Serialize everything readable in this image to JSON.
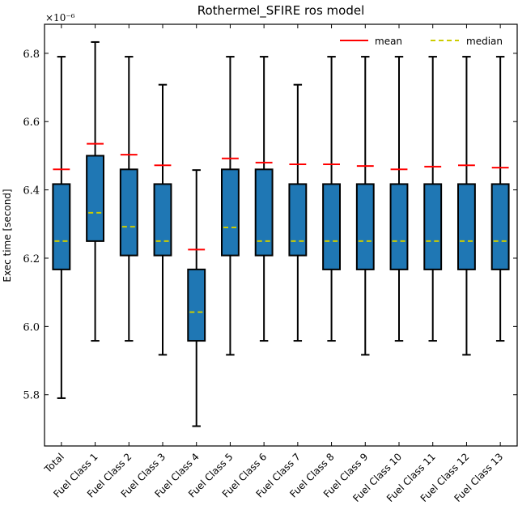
{
  "chart_data": {
    "type": "box",
    "title": "Rothermel_SFIRE ros model",
    "ylabel": "Exec time [second]",
    "xlabel": "",
    "y_offset_label": "×10⁻⁶",
    "ylim": [
      5.65,
      6.885
    ],
    "yticks": [
      5.8,
      6.0,
      6.2,
      6.4,
      6.6,
      6.8
    ],
    "ytick_labels": [
      "5.8",
      "6.0",
      "6.2",
      "6.4",
      "6.6",
      "6.8"
    ],
    "categories": [
      "Total",
      "Fuel Class 1",
      "Fuel Class 2",
      "Fuel Class 3",
      "Fuel Class 4",
      "Fuel Class 5",
      "Fuel Class 6",
      "Fuel Class 7",
      "Fuel Class 8",
      "Fuel Class 9",
      "Fuel Class 10",
      "Fuel Class 11",
      "Fuel Class 12",
      "Fuel Class 13"
    ],
    "boxes": [
      {
        "whislo": 5.79,
        "q1": 6.167,
        "med": 6.25,
        "q3": 6.417,
        "whishi": 6.79,
        "mean": 6.46
      },
      {
        "whislo": 5.958,
        "q1": 6.25,
        "med": 6.333,
        "q3": 6.5,
        "whishi": 6.833,
        "mean": 6.535
      },
      {
        "whislo": 5.958,
        "q1": 6.208,
        "med": 6.292,
        "q3": 6.46,
        "whishi": 6.79,
        "mean": 6.503
      },
      {
        "whislo": 5.917,
        "q1": 6.208,
        "med": 6.25,
        "q3": 6.417,
        "whishi": 6.708,
        "mean": 6.472
      },
      {
        "whislo": 5.708,
        "q1": 5.958,
        "med": 6.042,
        "q3": 6.167,
        "whishi": 6.458,
        "mean": 6.225
      },
      {
        "whislo": 5.917,
        "q1": 6.208,
        "med": 6.29,
        "q3": 6.46,
        "whishi": 6.79,
        "mean": 6.492
      },
      {
        "whislo": 5.958,
        "q1": 6.208,
        "med": 6.25,
        "q3": 6.46,
        "whishi": 6.79,
        "mean": 6.48
      },
      {
        "whislo": 5.958,
        "q1": 6.208,
        "med": 6.25,
        "q3": 6.417,
        "whishi": 6.708,
        "mean": 6.475
      },
      {
        "whislo": 5.958,
        "q1": 6.167,
        "med": 6.25,
        "q3": 6.417,
        "whishi": 6.79,
        "mean": 6.475
      },
      {
        "whislo": 5.917,
        "q1": 6.167,
        "med": 6.25,
        "q3": 6.417,
        "whishi": 6.79,
        "mean": 6.47
      },
      {
        "whislo": 5.958,
        "q1": 6.167,
        "med": 6.25,
        "q3": 6.417,
        "whishi": 6.79,
        "mean": 6.46
      },
      {
        "whislo": 5.958,
        "q1": 6.167,
        "med": 6.25,
        "q3": 6.417,
        "whishi": 6.79,
        "mean": 6.468
      },
      {
        "whislo": 5.917,
        "q1": 6.167,
        "med": 6.25,
        "q3": 6.417,
        "whishi": 6.79,
        "mean": 6.472
      },
      {
        "whislo": 5.958,
        "q1": 6.167,
        "med": 6.25,
        "q3": 6.417,
        "whishi": 6.79,
        "mean": 6.465
      }
    ],
    "legend": {
      "placement": "top-right",
      "items": [
        {
          "label": "mean",
          "color": "#ff0000",
          "style": "solid"
        },
        {
          "label": "median",
          "color": "#cccc00",
          "style": "dashed"
        }
      ]
    },
    "colors": {
      "box_fill": "#1f77b4",
      "box_edge": "#000000",
      "mean_line": "#ff0000",
      "median_line": "#cccc00"
    },
    "grid": false
  }
}
